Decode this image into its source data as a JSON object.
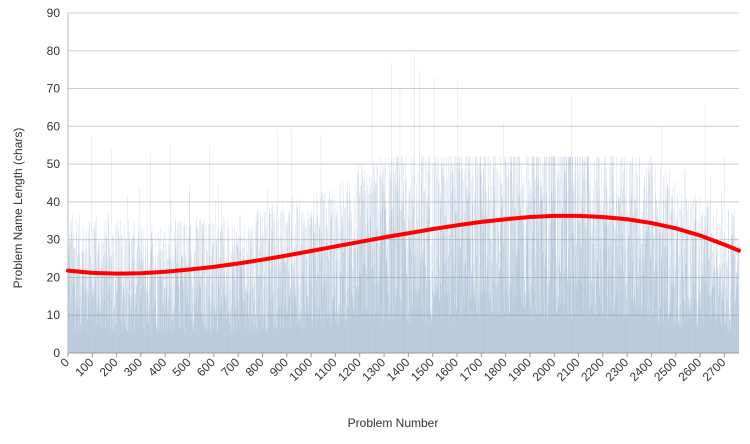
{
  "chart_data": {
    "type": "bar",
    "title": "",
    "xlabel": "Problem Number",
    "ylabel": "Problem Name Length (chars)",
    "xlim": [
      0,
      2760
    ],
    "ylim": [
      0,
      90
    ],
    "grid": true,
    "x_ticks": [
      0,
      100,
      200,
      300,
      400,
      500,
      600,
      700,
      800,
      900,
      1000,
      1100,
      1200,
      1300,
      1400,
      1500,
      1600,
      1700,
      1800,
      1900,
      2000,
      2100,
      2200,
      2300,
      2400,
      2500,
      2600,
      2700
    ],
    "y_ticks": [
      0,
      10,
      20,
      30,
      40,
      50,
      60,
      70,
      80,
      90
    ],
    "colors": {
      "bars": "#7f9fc0",
      "trend": "#ff0000",
      "grid": "#cccccc"
    },
    "trend_line": {
      "x": [
        0,
        100,
        200,
        300,
        400,
        500,
        600,
        700,
        800,
        900,
        1000,
        1100,
        1200,
        1300,
        1400,
        1500,
        1600,
        1700,
        1800,
        1900,
        2000,
        2100,
        2200,
        2300,
        2400,
        2500,
        2600,
        2700,
        2760
      ],
      "y": [
        21.8,
        21.2,
        21.0,
        21.1,
        21.5,
        22.1,
        22.8,
        23.7,
        24.7,
        25.8,
        27.0,
        28.2,
        29.4,
        30.6,
        31.7,
        32.8,
        33.8,
        34.7,
        35.4,
        36.0,
        36.3,
        36.3,
        36.0,
        35.4,
        34.4,
        33.0,
        31.1,
        28.7,
        27.1
      ]
    },
    "bars": {
      "count": 2760,
      "mean_by_century": [
        22,
        20,
        21,
        20,
        20,
        21,
        21,
        21,
        22,
        23,
        24,
        26,
        28,
        30,
        32,
        31,
        32,
        32,
        34,
        35,
        36,
        35,
        33,
        31,
        30,
        26,
        24,
        22
      ],
      "peaks": [
        {
          "x": 95,
          "y": 57
        },
        {
          "x": 180,
          "y": 54
        },
        {
          "x": 340,
          "y": 53
        },
        {
          "x": 420,
          "y": 55
        },
        {
          "x": 580,
          "y": 55
        },
        {
          "x": 860,
          "y": 59
        },
        {
          "x": 920,
          "y": 59
        },
        {
          "x": 1040,
          "y": 58
        },
        {
          "x": 1250,
          "y": 70
        },
        {
          "x": 1330,
          "y": 77
        },
        {
          "x": 1365,
          "y": 70
        },
        {
          "x": 1425,
          "y": 79
        },
        {
          "x": 1445,
          "y": 75
        },
        {
          "x": 1505,
          "y": 73
        },
        {
          "x": 1600,
          "y": 72
        },
        {
          "x": 1790,
          "y": 61
        },
        {
          "x": 2070,
          "y": 68
        },
        {
          "x": 2440,
          "y": 60
        },
        {
          "x": 2620,
          "y": 66
        },
        {
          "x": 2700,
          "y": 52
        }
      ]
    }
  }
}
